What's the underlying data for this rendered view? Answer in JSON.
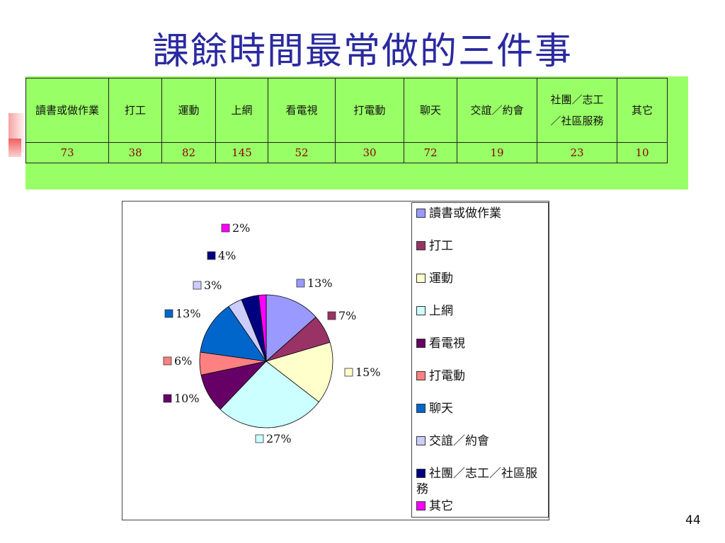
{
  "title": "課餘時間最常做的三件事",
  "table": {
    "headers": [
      {
        "line1": "讀書或做作業",
        "line2": ""
      },
      {
        "line1": "打工",
        "line2": ""
      },
      {
        "line1": "運動",
        "line2": ""
      },
      {
        "line1": "上網",
        "line2": ""
      },
      {
        "line1": "看電視",
        "line2": ""
      },
      {
        "line1": "打電動",
        "line2": ""
      },
      {
        "line1": "聊天",
        "line2": ""
      },
      {
        "line1": "交誼／約會",
        "line2": ""
      },
      {
        "line1": "社團／志工",
        "line2": "／社區服務"
      },
      {
        "line1": "其它",
        "line2": ""
      }
    ],
    "values": [
      "73",
      "38",
      "82",
      "145",
      "52",
      "30",
      "72",
      "19",
      "23",
      "10"
    ]
  },
  "chart_data": {
    "type": "pie",
    "categories": [
      "讀書或做作業",
      "打工",
      "運動",
      "上網",
      "看電視",
      "打電動",
      "聊天",
      "交誼／約會",
      "社團／志工／社區服務",
      "其它"
    ],
    "values": [
      73,
      38,
      82,
      145,
      52,
      30,
      72,
      19,
      23,
      10
    ],
    "data_labels": [
      "13%",
      "7%",
      "15%",
      "27%",
      "10%",
      "6%",
      "13%",
      "3%",
      "4%",
      "2%"
    ],
    "colors": [
      "#9999ff",
      "#993366",
      "#ffffcc",
      "#ccffff",
      "#660066",
      "#ff8080",
      "#0066cc",
      "#ccccff",
      "#000080",
      "#ff00ff"
    ],
    "legend_placement": "right"
  },
  "legend": [
    {
      "label": "讀書或做作業"
    },
    {
      "label": "打工"
    },
    {
      "label": "運動"
    },
    {
      "label": "上網"
    },
    {
      "label": "看電視"
    },
    {
      "label": "打電動"
    },
    {
      "label": "聊天"
    },
    {
      "label": "交誼／約會"
    },
    {
      "label": "社團／志工／社區服務"
    },
    {
      "label": "其它"
    }
  ],
  "page_number": "44"
}
